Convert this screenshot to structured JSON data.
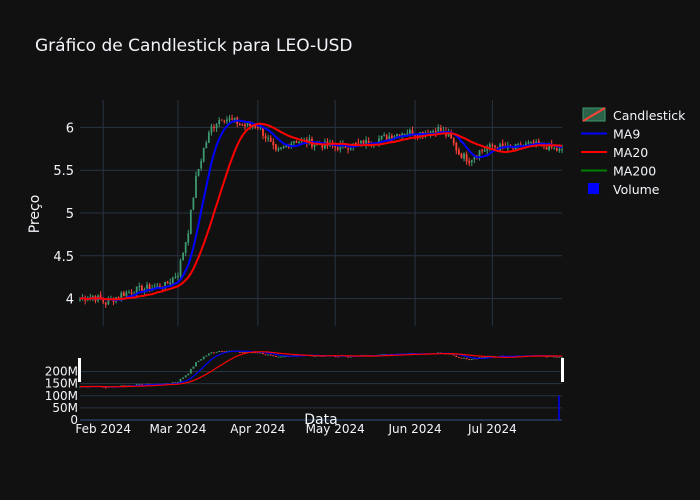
{
  "chart_data": {
    "type": "candlestick",
    "title": "Gráfico de Candlestick para LEO-USD",
    "ylabel": "Preço",
    "xlabel": "Data",
    "price_axis": {
      "ylim": [
        3.68,
        6.32
      ],
      "ticks": [
        4,
        4.5,
        5,
        5.5,
        6
      ],
      "tick_labels": [
        "4",
        "4.5",
        "5",
        "5.5",
        "6"
      ]
    },
    "volume_axis": {
      "ylim": [
        0,
        260000000
      ],
      "ticks": [
        0,
        50000000,
        100000000,
        150000000,
        200000000
      ],
      "tick_labels": [
        "0",
        "50M",
        "100M",
        "150M",
        "200M"
      ]
    },
    "x_axis": {
      "start": "2024-01-23",
      "end": "2024-07-28",
      "tick_dates": [
        "2024-02-01",
        "2024-03-01",
        "2024-04-01",
        "2024-05-01",
        "2024-06-01",
        "2024-07-01"
      ],
      "tick_labels": [
        "Feb 2024",
        "Mar 2024",
        "Apr 2024",
        "May 2024",
        "Jun 2024",
        "Jul 2024"
      ]
    },
    "grid": true,
    "legend": {
      "placement": "top-right",
      "items": [
        {
          "label": "Candlestick",
          "kind": "candle"
        },
        {
          "label": "MA9",
          "color": "#0000ff"
        },
        {
          "label": "MA20",
          "color": "#ff0000"
        },
        {
          "label": "MA200",
          "color": "#008000"
        },
        {
          "label": "Volume",
          "kind": "square",
          "color": "#0000ff"
        }
      ]
    },
    "colors": {
      "up": "#3d9970",
      "down": "#ff4136",
      "ma9": "#0000ff",
      "ma20": "#ff0000",
      "volume": "#0000ff"
    },
    "price_keypoints": [
      [
        "2024-01-23",
        4.0
      ],
      [
        "2024-01-28",
        4.03
      ],
      [
        "2024-02-02",
        3.95
      ],
      [
        "2024-02-08",
        4.05
      ],
      [
        "2024-02-14",
        4.1
      ],
      [
        "2024-02-20",
        4.13
      ],
      [
        "2024-02-25",
        4.15
      ],
      [
        "2024-03-01",
        4.3
      ],
      [
        "2024-03-05",
        4.8
      ],
      [
        "2024-03-08",
        5.4
      ],
      [
        "2024-03-11",
        5.75
      ],
      [
        "2024-03-14",
        6.0
      ],
      [
        "2024-03-18",
        6.12
      ],
      [
        "2024-03-22",
        6.08
      ],
      [
        "2024-03-27",
        6.02
      ],
      [
        "2024-04-01",
        6.02
      ],
      [
        "2024-04-05",
        5.85
      ],
      [
        "2024-04-08",
        5.7
      ],
      [
        "2024-04-15",
        5.85
      ],
      [
        "2024-04-22",
        5.82
      ],
      [
        "2024-05-01",
        5.77
      ],
      [
        "2024-05-10",
        5.8
      ],
      [
        "2024-05-20",
        5.88
      ],
      [
        "2024-05-28",
        5.95
      ],
      [
        "2024-06-04",
        5.93
      ],
      [
        "2024-06-10",
        5.98
      ],
      [
        "2024-06-14",
        5.9
      ],
      [
        "2024-06-18",
        5.7
      ],
      [
        "2024-06-22",
        5.62
      ],
      [
        "2024-06-26",
        5.72
      ],
      [
        "2024-07-01",
        5.78
      ],
      [
        "2024-07-08",
        5.75
      ],
      [
        "2024-07-15",
        5.8
      ],
      [
        "2024-07-22",
        5.78
      ],
      [
        "2024-07-28",
        5.72
      ]
    ],
    "volume_spike": {
      "date": "2024-07-28",
      "value": 100000000
    }
  }
}
